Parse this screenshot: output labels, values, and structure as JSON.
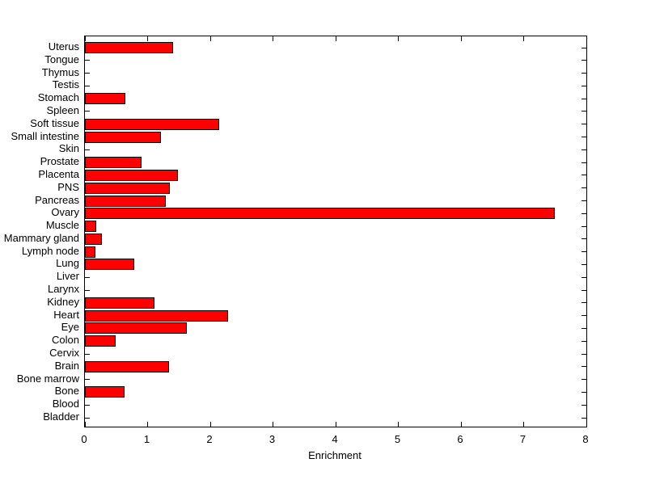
{
  "chart_data": {
    "type": "bar",
    "orientation": "horizontal",
    "title": "",
    "xlabel": "Enrichment",
    "ylabel": "",
    "categories": [
      "Uterus",
      "Tongue",
      "Thymus",
      "Testis",
      "Stomach",
      "Spleen",
      "Soft tissue",
      "Small intestine",
      "Skin",
      "Prostate",
      "Placenta",
      "PNS",
      "Pancreas",
      "Ovary",
      "Muscle",
      "Mammary gland",
      "Lymph node",
      "Lung",
      "Liver",
      "Larynx",
      "Kidney",
      "Heart",
      "Eye",
      "Colon",
      "Cervix",
      "Brain",
      "Bone marrow",
      "Bone",
      "Blood",
      "Bladder"
    ],
    "values": [
      1.38,
      0,
      0,
      0,
      0.62,
      0,
      2.11,
      1.19,
      0,
      0.88,
      1.46,
      1.33,
      1.26,
      7.47,
      0.16,
      0.25,
      0.14,
      0.76,
      0,
      0,
      1.09,
      2.26,
      1.6,
      0.46,
      0,
      1.31,
      0,
      0.61,
      0,
      0
    ],
    "xlim": [
      0,
      8
    ],
    "xticks": [
      0,
      1,
      2,
      3,
      4,
      5,
      6,
      7,
      8
    ],
    "grid": false,
    "legend": null,
    "bar_color": "#FF0000",
    "bar_edge_color": "#000000",
    "axis_color": "#000000",
    "background_color": "#FFFFFF"
  }
}
